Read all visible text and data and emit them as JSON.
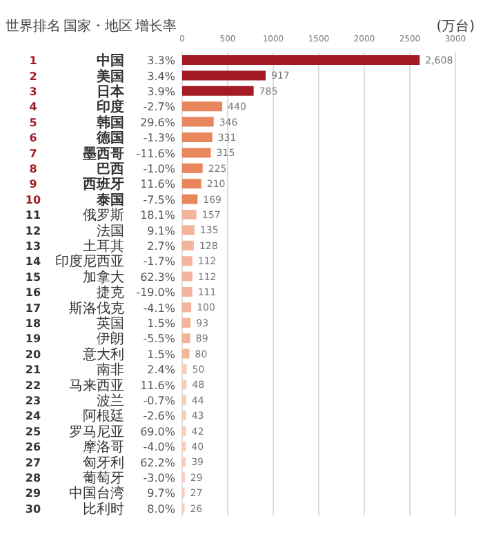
{
  "chart_data": {
    "type": "bar",
    "orientation": "horizontal",
    "xlabel": "(万台)",
    "categories": [
      "中国",
      "美国",
      "日本",
      "印度",
      "韩国",
      "德国",
      "墨西哥",
      "巴西",
      "西班牙",
      "泰国",
      "俄罗斯",
      "法国",
      "土耳其",
      "印度尼西亚",
      "加拿大",
      "捷克",
      "斯洛伐克",
      "英国",
      "伊朗",
      "意大利",
      "南非",
      "马来西亚",
      "波兰",
      "阿根廷",
      "罗马尼亚",
      "摩洛哥",
      "匈牙利",
      "葡萄牙",
      "中国台湾",
      "比利时"
    ],
    "values": [
      2608,
      917,
      785,
      440,
      346,
      331,
      315,
      225,
      210,
      169,
      157,
      135,
      128,
      112,
      112,
      111,
      100,
      93,
      89,
      80,
      50,
      48,
      44,
      43,
      42,
      40,
      39,
      29,
      27,
      26
    ],
    "value_labels": [
      "2,608",
      "917",
      "785",
      "440",
      "346",
      "331",
      "315",
      "225",
      "210",
      "169",
      "157",
      "135",
      "128",
      "112",
      "112",
      "111",
      "100",
      "93",
      "89",
      "80",
      "50",
      "48",
      "44",
      "43",
      "42",
      "40",
      "39",
      "29",
      "27",
      "26"
    ],
    "colors": [
      "#a31c25",
      "#a31c25",
      "#a31c25",
      "#e8875e",
      "#e8875e",
      "#e8875e",
      "#e8875e",
      "#e8875e",
      "#e8875e",
      "#e8875e",
      "#f2b49a",
      "#f2b49a",
      "#f2b49a",
      "#f2b49a",
      "#f2b49a",
      "#f2b49a",
      "#f2b49a",
      "#f2b49a",
      "#f2b49a",
      "#f2b49a",
      "#f5cdb8",
      "#f5cdb8",
      "#f5cdb8",
      "#f5cdb8",
      "#f5cdb8",
      "#f5cdb8",
      "#f5cdb8",
      "#f5cdb8",
      "#f5cdb8",
      "#f5cdb8"
    ],
    "xlim": [
      0,
      3000
    ],
    "xticks": [
      0,
      500,
      1000,
      1500,
      2000,
      2500,
      3000
    ],
    "grid": "x",
    "annotations": [
      "世界排名",
      "国家・地区",
      "增长率",
      "1",
      "2",
      "3",
      "4",
      "5",
      "6",
      "7",
      "8",
      "9",
      "10",
      "11",
      "12",
      "13",
      "14",
      "15",
      "16",
      "17",
      "18",
      "19",
      "20",
      "21",
      "22",
      "23",
      "24",
      "25",
      "26",
      "27",
      "28",
      "29",
      "30",
      "3.3%",
      "3.4%",
      "3.9%",
      "-2.7%",
      "29.6%",
      "-1.3%",
      "-11.6%",
      "-1.0%",
      "11.6%",
      "-7.5%",
      "18.1%",
      "9.1%",
      "2.7%",
      "-1.7%",
      "62.3%",
      "-19.0%",
      "-4.1%",
      "1.5%",
      "-5.5%",
      "1.5%",
      "2.4%",
      "11.6%",
      "-0.7%",
      "-2.6%",
      "69.0%",
      "-4.0%",
      "62.2%",
      "-3.0%",
      "9.7%",
      "8.0%"
    ]
  }
}
